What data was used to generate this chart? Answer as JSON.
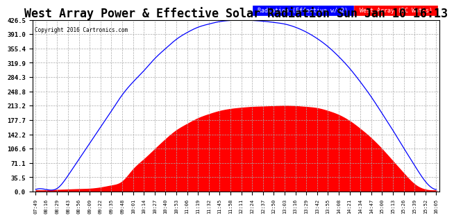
{
  "title": "West Array Power & Effective Solar Radiation Sun Jan 10 16:13",
  "copyright": "Copyright 2016 Cartronics.com",
  "legend_labels": [
    "Radiation (Effective w/m2)",
    "West Array (DC Watts)"
  ],
  "yticks": [
    0.0,
    35.5,
    71.1,
    106.6,
    142.2,
    177.7,
    213.2,
    248.8,
    284.3,
    319.9,
    355.4,
    391.0,
    426.5
  ],
  "ymax": 426.5,
  "ymin": 0.0,
  "bg_color": "#ffffff",
  "grid_color": "#aaaaaa",
  "line_color": "blue",
  "fill_color": "red",
  "title_fontsize": 12,
  "xtick_labels": [
    "07:49",
    "08:16",
    "08:29",
    "08:43",
    "08:56",
    "09:09",
    "09:22",
    "09:35",
    "09:48",
    "10:01",
    "10:14",
    "10:27",
    "10:40",
    "10:53",
    "11:06",
    "11:19",
    "11:32",
    "11:45",
    "11:58",
    "12:11",
    "12:24",
    "12:37",
    "12:50",
    "13:03",
    "13:16",
    "13:29",
    "13:42",
    "13:55",
    "14:08",
    "14:21",
    "14:34",
    "14:47",
    "15:00",
    "15:13",
    "15:26",
    "15:39",
    "15:52",
    "16:05"
  ],
  "radiation_values": [
    5,
    5,
    8,
    40,
    80,
    120,
    160,
    200,
    240,
    272,
    300,
    330,
    355,
    378,
    395,
    408,
    416,
    422,
    425,
    426,
    425,
    423,
    420,
    416,
    408,
    396,
    380,
    360,
    335,
    306,
    272,
    235,
    194,
    152,
    108,
    65,
    25,
    5
  ],
  "power_values": [
    3,
    3,
    4,
    5,
    6,
    7,
    10,
    15,
    25,
    55,
    80,
    105,
    130,
    152,
    168,
    182,
    192,
    200,
    205,
    208,
    210,
    211,
    212,
    213,
    212,
    210,
    207,
    200,
    190,
    175,
    155,
    132,
    105,
    75,
    45,
    18,
    5,
    3
  ]
}
